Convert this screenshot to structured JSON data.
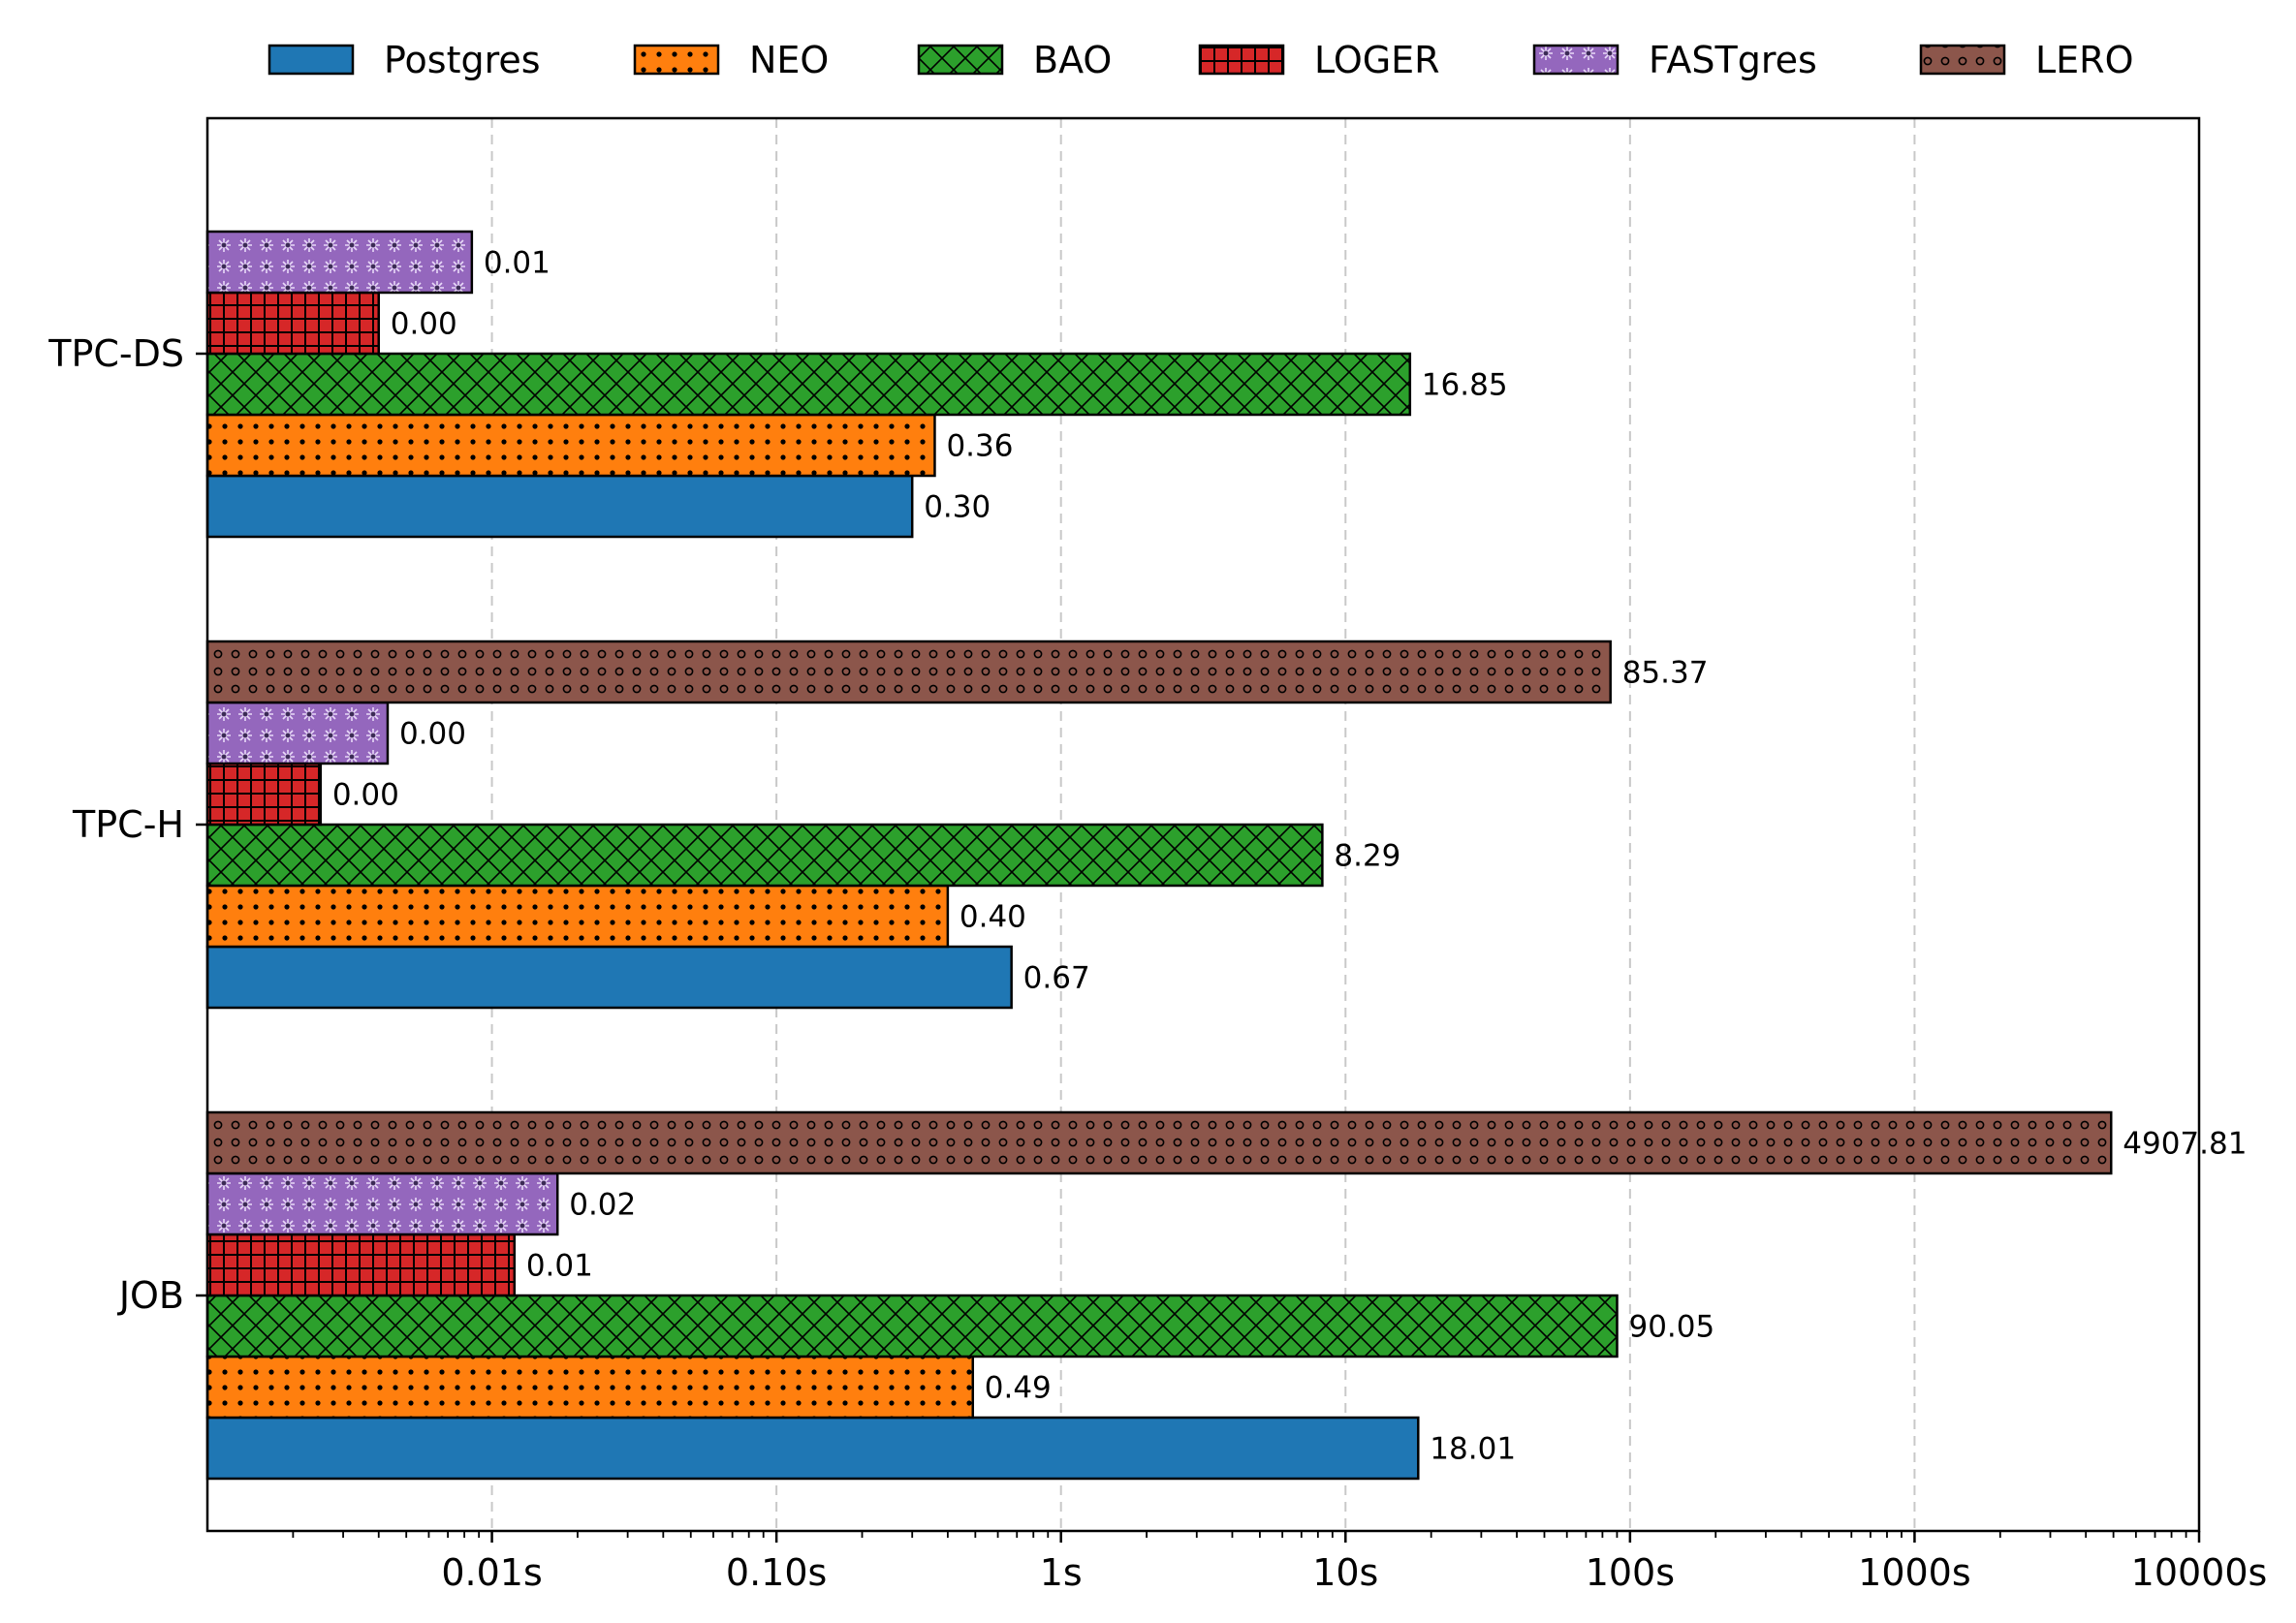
{
  "chart_data": {
    "type": "bar",
    "orientation": "horizontal",
    "x_scale": "log",
    "xlim": [
      0.001,
      10000
    ],
    "x_ticks": [
      {
        "value": 0.01,
        "label": "0.01s"
      },
      {
        "value": 0.1,
        "label": "0.10s"
      },
      {
        "value": 1,
        "label": "1s"
      },
      {
        "value": 10,
        "label": "10s"
      },
      {
        "value": 100,
        "label": "100s"
      },
      {
        "value": 1000,
        "label": "1000s"
      },
      {
        "value": 10000,
        "label": "10000s"
      }
    ],
    "grid": "x-dashed",
    "legend_position": "top",
    "categories": [
      "TPC-DS",
      "TPC-H",
      "JOB"
    ],
    "series": [
      {
        "name": "Postgres",
        "color": "#1f77b4",
        "pattern": "none",
        "values": [
          0.3,
          0.67,
          18.01
        ],
        "labels": [
          "0.30",
          "0.67",
          "18.01"
        ]
      },
      {
        "name": "NEO",
        "color": "#ff7f0e",
        "pattern": "dots",
        "values": [
          0.36,
          0.4,
          0.49
        ],
        "labels": [
          "0.36",
          "0.40",
          "0.49"
        ]
      },
      {
        "name": "BAO",
        "color": "#2ca02c",
        "pattern": "crosshatch",
        "values": [
          16.85,
          8.29,
          90.05
        ],
        "labels": [
          "16.85",
          "8.29",
          "90.05"
        ]
      },
      {
        "name": "LOGER",
        "color": "#d62728",
        "pattern": "grid",
        "values": [
          0.004,
          0.0025,
          0.012
        ],
        "labels": [
          "0.00",
          "0.00",
          "0.01"
        ]
      },
      {
        "name": "FASTgres",
        "color": "#9467bd",
        "pattern": "stars",
        "values": [
          0.0085,
          0.0043,
          0.017
        ],
        "labels": [
          "0.01",
          "0.00",
          "0.02"
        ]
      },
      {
        "name": "LERO",
        "color": "#8c564b",
        "pattern": "circles",
        "values": [
          null,
          85.37,
          4907.81
        ],
        "labels": [
          "",
          "85.37",
          "4907.81"
        ]
      }
    ]
  }
}
